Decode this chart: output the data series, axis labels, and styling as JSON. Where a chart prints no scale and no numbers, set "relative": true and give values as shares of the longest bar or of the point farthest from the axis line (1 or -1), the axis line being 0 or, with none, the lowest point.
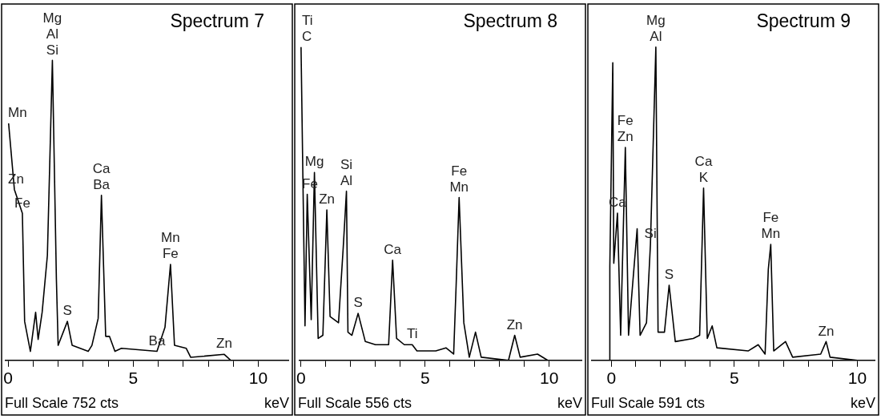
{
  "chart_data": [
    {
      "type": "line",
      "title": "Spectrum 7",
      "xlabel": "keV",
      "relative": true,
      "color": "#000000",
      "xlim": [
        -0.1,
        11.2
      ],
      "xticks": [
        0,
        {
          "value": 1,
          "label": null
        },
        {
          "value": 2,
          "label": null
        },
        {
          "value": 3,
          "label": null
        },
        {
          "value": 4,
          "label": null
        },
        5,
        {
          "value": 6,
          "label": null
        },
        {
          "value": 7,
          "label": null
        },
        {
          "value": 8,
          "label": null
        },
        {
          "value": 9,
          "label": null
        },
        10
      ],
      "x": [
        0.02,
        0.25,
        0.57,
        0.66,
        0.89,
        1.1,
        1.2,
        1.36,
        1.57,
        1.77,
        1.93,
        2.0,
        2.37,
        2.56,
        3.2,
        3.35,
        3.6,
        3.73,
        3.9,
        4.05,
        4.27,
        4.53,
        5.95,
        6.27,
        6.49,
        6.65,
        7.12,
        7.3,
        8.64,
        8.9,
        9.75
      ],
      "values": [
        0.79,
        0.57,
        0.49,
        0.13,
        0.03,
        0.16,
        0.07,
        0.16,
        0.35,
        1.0,
        0.27,
        0.05,
        0.13,
        0.05,
        0.03,
        0.05,
        0.14,
        0.55,
        0.08,
        0.08,
        0.03,
        0.04,
        0.03,
        0.11,
        0.32,
        0.05,
        0.04,
        0.01,
        0.02,
        0.0,
        0.0
      ],
      "annotations": [
        {
          "text": "Mg",
          "x": 1.77,
          "y": 1.0
        },
        {
          "text": "Al",
          "x": 1.77,
          "y": 1.0
        },
        {
          "text": "Mn",
          "x": 0.02,
          "y": 0.79
        },
        {
          "text": "Si",
          "x": 1.77,
          "y": 1.0
        },
        {
          "text": "Zn",
          "x": 0.25,
          "y": 0.57
        },
        {
          "text": "Fe",
          "x": 0.57,
          "y": 0.49
        },
        {
          "text": "S",
          "x": 2.37,
          "y": 0.13
        },
        {
          "text": "Ca",
          "x": 3.73,
          "y": 0.55
        },
        {
          "text": "Ba",
          "x": 3.73,
          "y": 0.55
        },
        {
          "text": "Mn",
          "x": 6.49,
          "y": 0.32
        },
        {
          "text": "Fe",
          "x": 6.49,
          "y": 0.32
        },
        {
          "text": "Ba",
          "x": 5.95,
          "y": 0.03
        },
        {
          "text": "Zn",
          "x": 8.64,
          "y": 0.02
        },
        "Full Scale 752 cts"
      ]
    },
    {
      "type": "line",
      "title": "Spectrum 8",
      "xlabel": "keV",
      "relative": true,
      "color": "#000000",
      "xlim": [
        -0.06,
        11.3
      ],
      "xticks": [
        0,
        {
          "value": 1,
          "label": null
        },
        {
          "value": 2,
          "label": null
        },
        {
          "value": 3,
          "label": null
        },
        {
          "value": 4,
          "label": null
        },
        5,
        {
          "value": 6,
          "label": null
        },
        {
          "value": 7,
          "label": null
        },
        {
          "value": 8,
          "label": null
        },
        {
          "value": 9,
          "label": null
        },
        10
      ],
      "x": [
        0.0,
        0.16,
        0.25,
        0.41,
        0.54,
        0.69,
        0.88,
        1.04,
        1.17,
        1.51,
        1.7,
        1.83,
        1.89,
        2.05,
        2.3,
        2.59,
        3.0,
        3.53,
        3.69,
        3.85,
        4.16,
        4.48,
        4.67,
        5.43,
        5.84,
        6.15,
        6.25,
        6.37,
        6.56,
        6.78,
        7.03,
        7.26,
        8.36,
        8.61,
        8.83,
        9.53,
        9.94
      ],
      "values": [
        1.0,
        0.11,
        0.53,
        0.13,
        0.6,
        0.07,
        0.08,
        0.48,
        0.14,
        0.12,
        0.36,
        0.54,
        0.09,
        0.08,
        0.15,
        0.06,
        0.05,
        0.05,
        0.32,
        0.07,
        0.05,
        0.05,
        0.03,
        0.03,
        0.04,
        0.02,
        0.24,
        0.52,
        0.12,
        0.01,
        0.09,
        0.01,
        0.0,
        0.08,
        0.01,
        0.02,
        0.0
      ],
      "annotations": [
        {
          "text": "Ti",
          "x": 0.0,
          "y": 1.0
        },
        {
          "text": "C",
          "x": 0.0,
          "y": 1.0
        },
        {
          "text": "Si",
          "x": 1.83,
          "y": 0.54
        },
        {
          "text": "Al",
          "x": 1.83,
          "y": 0.54
        },
        {
          "text": "Mg",
          "x": 0.54,
          "y": 0.6
        },
        {
          "text": "Zn",
          "x": 1.04,
          "y": 0.48
        },
        {
          "text": "Fe",
          "x": 0.25,
          "y": 0.53
        },
        {
          "text": "Fe",
          "x": 6.37,
          "y": 0.52
        },
        {
          "text": "Mn",
          "x": 6.37,
          "y": 0.52
        },
        {
          "text": "Ca",
          "x": 3.69,
          "y": 0.32
        },
        {
          "text": "S",
          "x": 2.3,
          "y": 0.15
        },
        {
          "text": "Ti",
          "x": 4.48,
          "y": 0.05
        },
        {
          "text": "Zn",
          "x": 8.61,
          "y": 0.08
        },
        "Full Scale 556 cts"
      ]
    },
    {
      "type": "line",
      "title": "Spectrum 9",
      "xlabel": "keV",
      "relative": true,
      "color": "#000000",
      "xlim": [
        -0.79,
        10.7
      ],
      "xticks": [
        0,
        {
          "value": 1,
          "label": null
        },
        {
          "value": 2,
          "label": null
        },
        {
          "value": 3,
          "label": null
        },
        {
          "value": 4,
          "label": null
        },
        5,
        {
          "value": 6,
          "label": null
        },
        {
          "value": 7,
          "label": null
        },
        {
          "value": 8,
          "label": null
        },
        {
          "value": 9,
          "label": null
        },
        10
      ],
      "x": [
        -0.06,
        -0.06,
        0.06,
        0.1,
        0.25,
        0.38,
        0.57,
        0.7,
        1.05,
        1.17,
        1.43,
        1.59,
        1.81,
        1.9,
        2.16,
        2.35,
        2.6,
        3.33,
        3.59,
        3.75,
        3.9,
        4.1,
        4.29,
        5.56,
        5.97,
        6.25,
        6.38,
        6.48,
        6.6,
        7.08,
        7.37,
        8.51,
        8.73,
        8.89,
        10.0
      ],
      "values": [
        0.0,
        0.3,
        0.95,
        0.31,
        0.47,
        0.08,
        0.68,
        0.08,
        0.42,
        0.08,
        0.12,
        0.37,
        1.0,
        0.09,
        0.09,
        0.24,
        0.06,
        0.07,
        0.08,
        0.55,
        0.07,
        0.11,
        0.04,
        0.03,
        0.05,
        0.02,
        0.29,
        0.37,
        0.03,
        0.06,
        0.01,
        0.02,
        0.06,
        0.01,
        0.0
      ],
      "annotations": [
        {
          "text": "Mg",
          "x": 1.81,
          "y": 1.0
        },
        {
          "text": "Al",
          "x": 1.81,
          "y": 1.0
        },
        {
          "text": "Fe",
          "x": 0.57,
          "y": 0.68
        },
        {
          "text": "Zn",
          "x": 0.57,
          "y": 0.68
        },
        {
          "text": "Si",
          "x": 1.59,
          "y": 0.37
        },
        {
          "text": "Ca",
          "x": 0.25,
          "y": 0.47
        },
        {
          "text": "Ca",
          "x": 3.75,
          "y": 0.55
        },
        {
          "text": "K",
          "x": 3.75,
          "y": 0.55
        },
        {
          "text": "Fe",
          "x": 6.48,
          "y": 0.37
        },
        {
          "text": "Mn",
          "x": 6.48,
          "y": 0.37
        },
        {
          "text": "S",
          "x": 2.35,
          "y": 0.24
        },
        {
          "text": "Zn",
          "x": 8.73,
          "y": 0.06
        },
        "Full Scale 591 cts"
      ]
    }
  ]
}
